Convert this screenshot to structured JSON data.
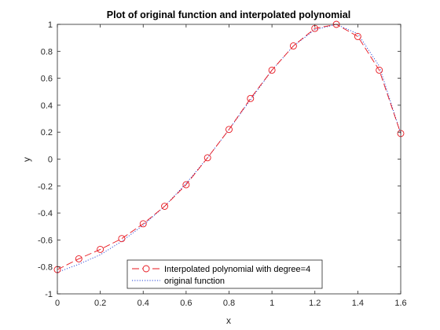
{
  "chart_data": {
    "type": "line",
    "title": "Plot of original function and interpolated polynomial",
    "xlabel": "x",
    "ylabel": "y",
    "xlim": [
      0,
      1.6
    ],
    "ylim": [
      -1,
      1
    ],
    "xticks": [
      0,
      0.2,
      0.4,
      0.6,
      0.8,
      1,
      1.2,
      1.4,
      1.6
    ],
    "xtick_labels": [
      "0",
      "0.2",
      "0.4",
      "0.6",
      "0.8",
      "1",
      "1.2",
      "1.4",
      "1.6"
    ],
    "yticks": [
      -1,
      -0.8,
      -0.6,
      -0.4,
      -0.2,
      0,
      0.2,
      0.4,
      0.6,
      0.8,
      1
    ],
    "ytick_labels": [
      "-1",
      "-0.8",
      "-0.6",
      "-0.4",
      "-0.2",
      "0",
      "0.2",
      "0.4",
      "0.6",
      "0.8",
      "1"
    ],
    "grid": false,
    "legend_position": "bottom-center",
    "x": [
      0,
      0.1,
      0.2,
      0.3,
      0.4,
      0.5,
      0.6,
      0.7,
      0.8,
      0.9,
      1.0,
      1.1,
      1.2,
      1.3,
      1.4,
      1.5,
      1.6
    ],
    "series": [
      {
        "name": "Interpolated polynomial with degree=4",
        "color": "#e8141c",
        "line_style": "dashed",
        "marker": "circle",
        "values": [
          -0.82,
          -0.74,
          -0.67,
          -0.59,
          -0.48,
          -0.35,
          -0.19,
          0.01,
          0.22,
          0.45,
          0.66,
          0.84,
          0.97,
          1.0,
          0.91,
          0.66,
          0.19
        ]
      },
      {
        "name": "original function",
        "color": "#1f3fd6",
        "line_style": "dotted",
        "marker": "none",
        "values": [
          -0.84,
          -0.78,
          -0.71,
          -0.61,
          -0.49,
          -0.35,
          -0.18,
          0.01,
          0.22,
          0.44,
          0.66,
          0.84,
          0.96,
          1.0,
          0.93,
          0.69,
          0.19
        ]
      }
    ]
  }
}
